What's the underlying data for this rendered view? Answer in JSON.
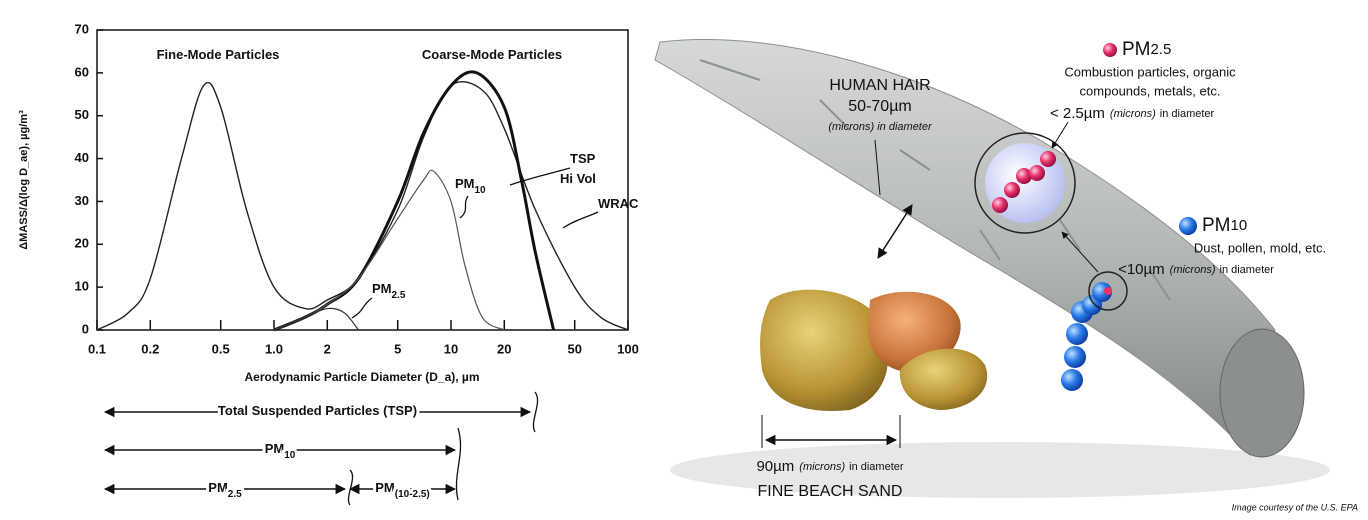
{
  "chart_data": {
    "type": "line",
    "y_label": "ΔMASS/Δ(log D_ae), µg/m³",
    "x_label": "Aerodynamic Particle Diameter (D_a), µm",
    "log_x": true,
    "xlim": [
      0.1,
      100
    ],
    "xticks": [
      0.1,
      0.2,
      0.5,
      {
        "value": 1,
        "label": "1.0"
      },
      2,
      5,
      10,
      20,
      50,
      100
    ],
    "ylim": [
      0,
      70
    ],
    "yticks": [
      0,
      10,
      20,
      30,
      40,
      50,
      60,
      70
    ],
    "series": [
      {
        "color": "#222222",
        "line_width": 1.4,
        "x": [
          0.1,
          0.15,
          0.2,
          0.3,
          0.4,
          0.5,
          0.7,
          1,
          1.5,
          2,
          3,
          5,
          7,
          10,
          15,
          20,
          30,
          50,
          70,
          100
        ],
        "values": [
          0,
          4,
          12,
          40,
          57,
          52,
          28,
          10,
          5,
          7,
          12,
          28,
          45,
          57,
          56,
          47,
          28,
          10,
          3,
          0
        ]
      },
      {
        "color": "#111111",
        "line_width": 3,
        "x": [
          1,
          1.5,
          2,
          3,
          5,
          7,
          10,
          14,
          20,
          25,
          30,
          38
        ],
        "values": [
          0,
          3,
          6,
          12,
          30,
          46,
          57,
          60,
          52,
          35,
          18,
          0
        ]
      },
      {
        "color": "#555555",
        "line_width": 1.2,
        "x": [
          1,
          1.5,
          2,
          3,
          5,
          7,
          8,
          10,
          12,
          15,
          20
        ],
        "values": [
          0,
          3,
          6,
          12,
          26,
          35,
          37,
          30,
          15,
          3,
          0
        ]
      },
      {
        "color": "#333333",
        "line_width": 1.2,
        "x": [
          1,
          1.5,
          2,
          2.5,
          3
        ],
        "values": [
          0,
          3,
          5,
          4,
          0
        ]
      }
    ],
    "annotations": [
      {
        "text": "Fine-Mode Particles"
      },
      {
        "text": "Coarse-Mode Particles"
      },
      {
        "text": "TSP"
      },
      {
        "text": "Hi Vol"
      },
      {
        "text": "WRAC"
      },
      {
        "text": "PM",
        "sub": "10"
      },
      {
        "text": "PM",
        "sub": "2.5"
      }
    ],
    "size_ranges": [
      {
        "text": "Total Suspended Particles (TSP)"
      },
      {
        "text": "PM",
        "sub": "10"
      },
      {
        "text": "PM",
        "sub": "2.5"
      },
      {
        "text": "PM",
        "sub": "(10-2.5)"
      }
    ]
  },
  "illustration": {
    "hair": {
      "title": "HUMAN HAIR",
      "size": "50-70µm",
      "note": "(microns) in diameter"
    },
    "pm25": {
      "name": "PM",
      "sub": "2.5",
      "line1": "Combustion particles, organic",
      "line2": "compounds, metals, etc.",
      "size": "< 2.5µm",
      "unit": "(microns)",
      "note": "in diameter"
    },
    "pm10": {
      "name": "PM",
      "sub": "10",
      "line1": "Dust, pollen, mold, etc.",
      "size": "<10µm",
      "unit": "(microns)",
      "note": "in diameter"
    },
    "sand": {
      "size": "90µm",
      "unit": "(microns)",
      "note": "in diameter",
      "title": "FINE BEACH SAND"
    },
    "credit": "Image courtesy of the U.S. EPA"
  }
}
